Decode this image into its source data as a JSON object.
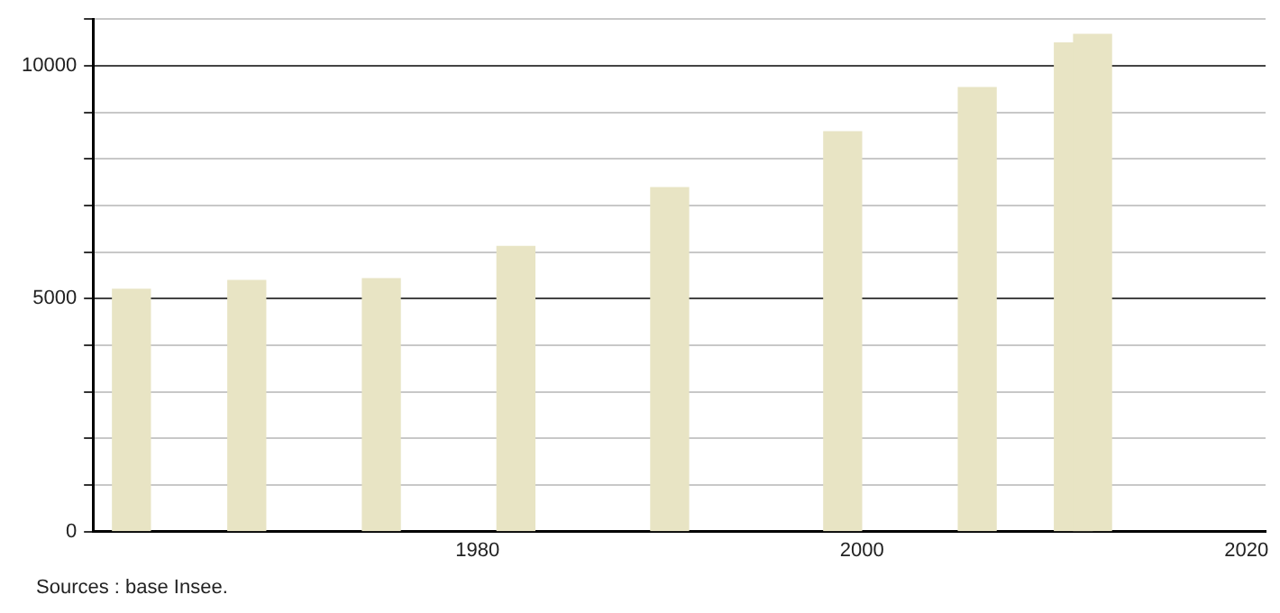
{
  "chart_data": {
    "type": "bar",
    "x": [
      1962,
      1968,
      1975,
      1982,
      1990,
      1999,
      2006,
      2011,
      2012
    ],
    "values": [
      5200,
      5390,
      5425,
      6120,
      7380,
      8580,
      9530,
      10490,
      10670
    ],
    "color": "#e8e4c4",
    "xlim": [
      1960,
      2021
    ],
    "xticks": [
      1980,
      2000,
      2020
    ],
    "ylim": [
      0,
      11000
    ],
    "yticks": [
      0,
      5000,
      10000
    ],
    "grid": "y",
    "legend": false,
    "annotations": [
      "Sources : base Insee."
    ]
  }
}
